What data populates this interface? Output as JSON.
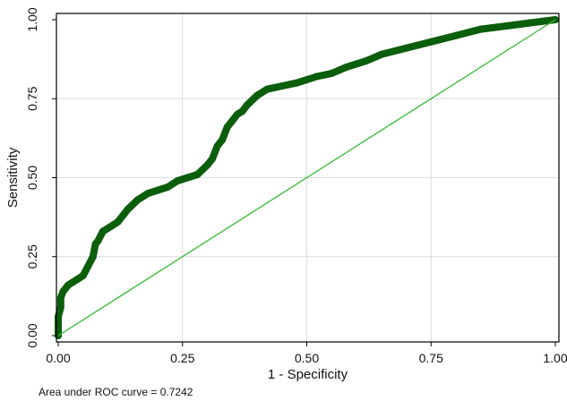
{
  "chart_data": {
    "type": "line",
    "xlabel": "1 - Specificity",
    "ylabel": "Sensitivity",
    "xlim": [
      0,
      1
    ],
    "ylim": [
      0,
      1
    ],
    "x_ticks": [
      "0.00",
      "0.25",
      "0.50",
      "0.75",
      "1.00"
    ],
    "y_ticks": [
      "0.00",
      "0.25",
      "0.50",
      "0.75",
      "1.00"
    ],
    "grid": true,
    "note": "Area under ROC curve = 0.7242",
    "series": [
      {
        "role": "roc-curve",
        "color": "#0b5e0b",
        "x": [
          0.0,
          0.0,
          0.0,
          0.005,
          0.005,
          0.01,
          0.015,
          0.02,
          0.03,
          0.04,
          0.05,
          0.06,
          0.07,
          0.075,
          0.08,
          0.09,
          0.1,
          0.12,
          0.14,
          0.16,
          0.18,
          0.2,
          0.22,
          0.24,
          0.26,
          0.28,
          0.3,
          0.31,
          0.32,
          0.33,
          0.34,
          0.35,
          0.36,
          0.37,
          0.38,
          0.4,
          0.42,
          0.45,
          0.48,
          0.5,
          0.52,
          0.55,
          0.58,
          0.6,
          0.62,
          0.65,
          0.7,
          0.75,
          0.8,
          0.85,
          0.9,
          0.95,
          1.0
        ],
        "y": [
          0.0,
          0.03,
          0.06,
          0.09,
          0.12,
          0.14,
          0.15,
          0.16,
          0.17,
          0.18,
          0.19,
          0.22,
          0.25,
          0.29,
          0.3,
          0.33,
          0.34,
          0.36,
          0.4,
          0.43,
          0.45,
          0.46,
          0.47,
          0.49,
          0.5,
          0.51,
          0.54,
          0.56,
          0.6,
          0.62,
          0.66,
          0.68,
          0.7,
          0.71,
          0.73,
          0.76,
          0.78,
          0.79,
          0.8,
          0.81,
          0.82,
          0.83,
          0.85,
          0.86,
          0.87,
          0.89,
          0.91,
          0.93,
          0.95,
          0.97,
          0.98,
          0.99,
          1.0
        ]
      },
      {
        "role": "reference-line",
        "color": "#33bb33",
        "x": [
          0,
          1
        ],
        "y": [
          0,
          1
        ]
      }
    ]
  }
}
